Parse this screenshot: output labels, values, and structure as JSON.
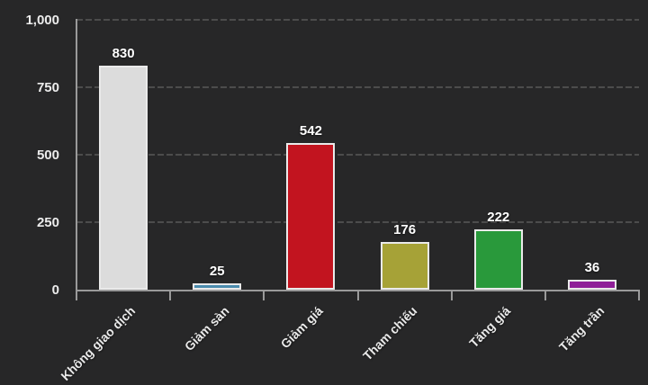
{
  "chart_data": {
    "type": "bar",
    "title": "",
    "xlabel": "",
    "ylabel": "",
    "categories": [
      "Không giao dịch",
      "Giảm sàn",
      "Giảm giá",
      "Tham chiếu",
      "Tăng giá",
      "Tăng trần"
    ],
    "values": [
      830,
      25,
      542,
      176,
      222,
      36
    ],
    "value_labels": [
      "830",
      "25",
      "542",
      "176",
      "222",
      "36"
    ],
    "bar_colors": [
      "#dcdcdc",
      "#4a8bad",
      "#c2141f",
      "#a6a237",
      "#29993b",
      "#8f1f98"
    ],
    "bar_border_color": "#eaeaea",
    "y_ticks": [
      {
        "value": 1000,
        "label": "1,000"
      },
      {
        "value": 750,
        "label": "750"
      },
      {
        "value": 500,
        "label": "500"
      },
      {
        "value": 250,
        "label": "250"
      },
      {
        "value": 0,
        "label": "0"
      }
    ],
    "ylim": [
      0,
      1000
    ],
    "grid": "dashed horizontal",
    "legend": "none",
    "background_color": "#272728",
    "axis_color": "#9a9a9a",
    "gridline_color": "#4c4c4c",
    "label_color": "#eaeaea",
    "x_label_rotation_deg": -45
  }
}
